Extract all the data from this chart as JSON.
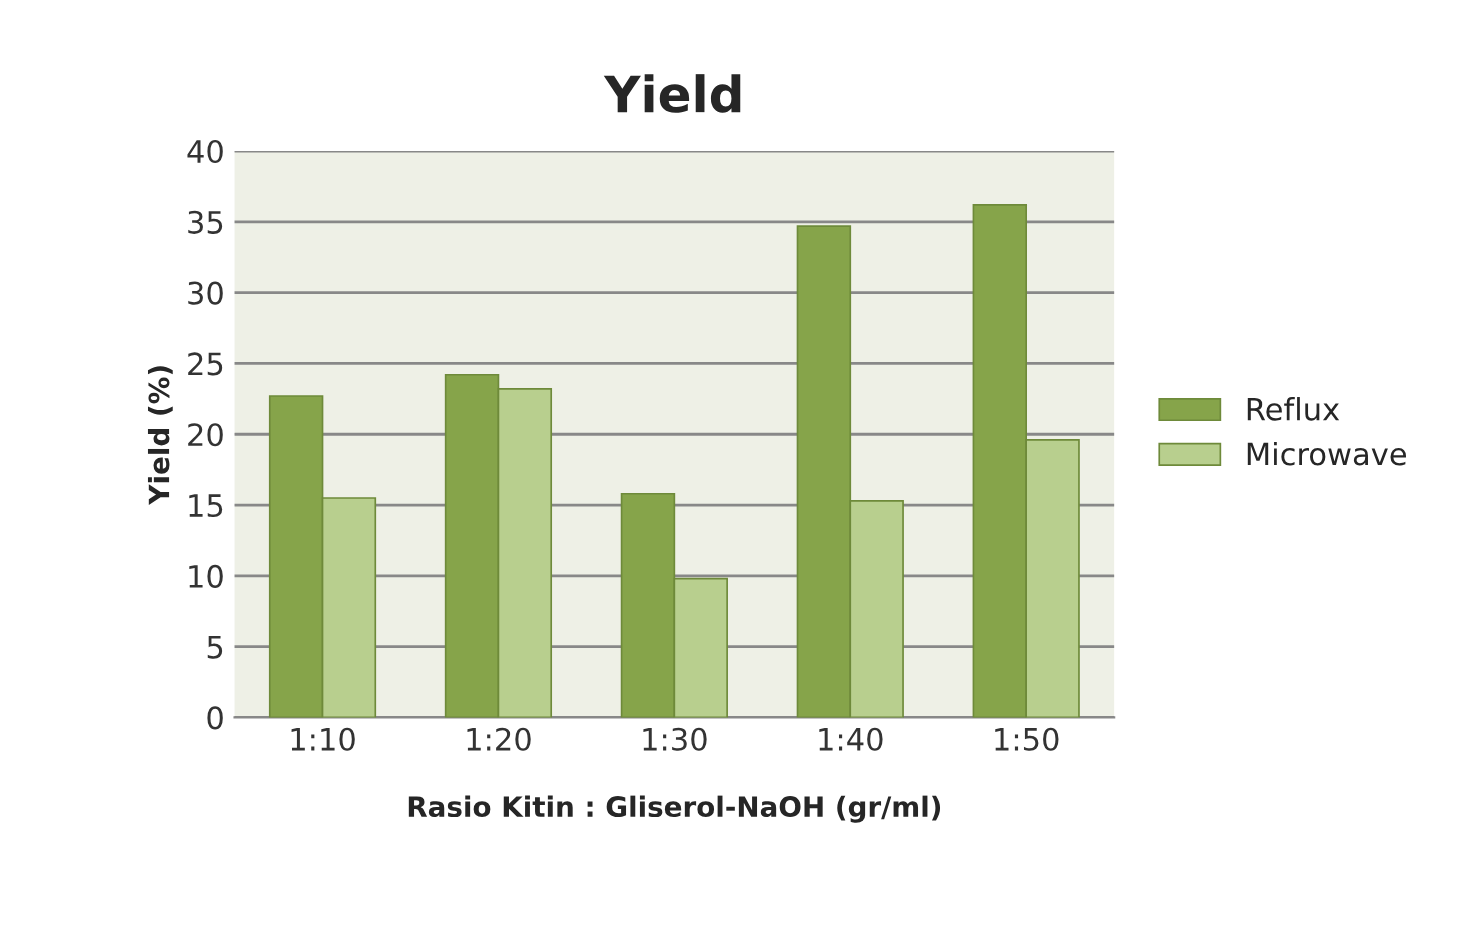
{
  "chart_data": {
    "type": "bar",
    "title": "Yield",
    "xlabel": "Rasio Kitin : Gliserol-NaOH (gr/ml)",
    "ylabel": "Yield (%)",
    "categories": [
      "1:10",
      "1:20",
      "1:30",
      "1:40",
      "1:50"
    ],
    "series": [
      {
        "name": "Reflux",
        "color": "#86a44a",
        "values": [
          22.7,
          24.2,
          15.8,
          34.7,
          36.2
        ]
      },
      {
        "name": "Microwave",
        "color": "#b8cf8e",
        "values": [
          15.5,
          23.2,
          9.8,
          15.3,
          19.6
        ]
      }
    ],
    "ylim": [
      0,
      40
    ],
    "yticks": [
      0,
      5,
      10,
      15,
      20,
      25,
      30,
      35,
      40
    ],
    "grid": "y",
    "legend": "right"
  }
}
